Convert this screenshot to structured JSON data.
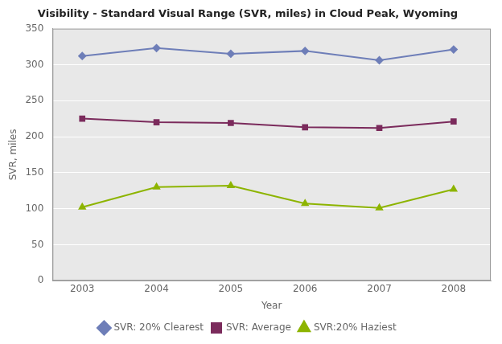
{
  "chart_data": {
    "type": "line",
    "title": "Visibility - Standard Visual Range (SVR, miles) in Cloud Peak, Wyoming",
    "x_label": "Year",
    "y_label": "SVR, miles",
    "x": [
      2003,
      2004,
      2005,
      2006,
      2007,
      2008
    ],
    "series": [
      {
        "name": "SVR: 20% Clearest",
        "color": "#6E7EB8",
        "marker": "diamond",
        "values": [
          312,
          323,
          315,
          319,
          306,
          321
        ]
      },
      {
        "name": "SVR: Average",
        "color": "#7B2B5C",
        "marker": "square",
        "values": [
          225,
          220,
          219,
          213,
          212,
          221
        ]
      },
      {
        "name": "SVR:20% Haziest",
        "color": "#8DB400",
        "marker": "triangle",
        "values": [
          102,
          130,
          132,
          107,
          101,
          127
        ]
      }
    ],
    "xlim": [
      2002.6,
      2008.5
    ],
    "xticks": [
      2003,
      2004,
      2005,
      2006,
      2007,
      2008
    ],
    "ylim": [
      0,
      350
    ],
    "yticks": [
      0,
      50,
      100,
      150,
      200,
      250,
      300,
      350
    ],
    "grid": "y",
    "legend": "bottom"
  }
}
